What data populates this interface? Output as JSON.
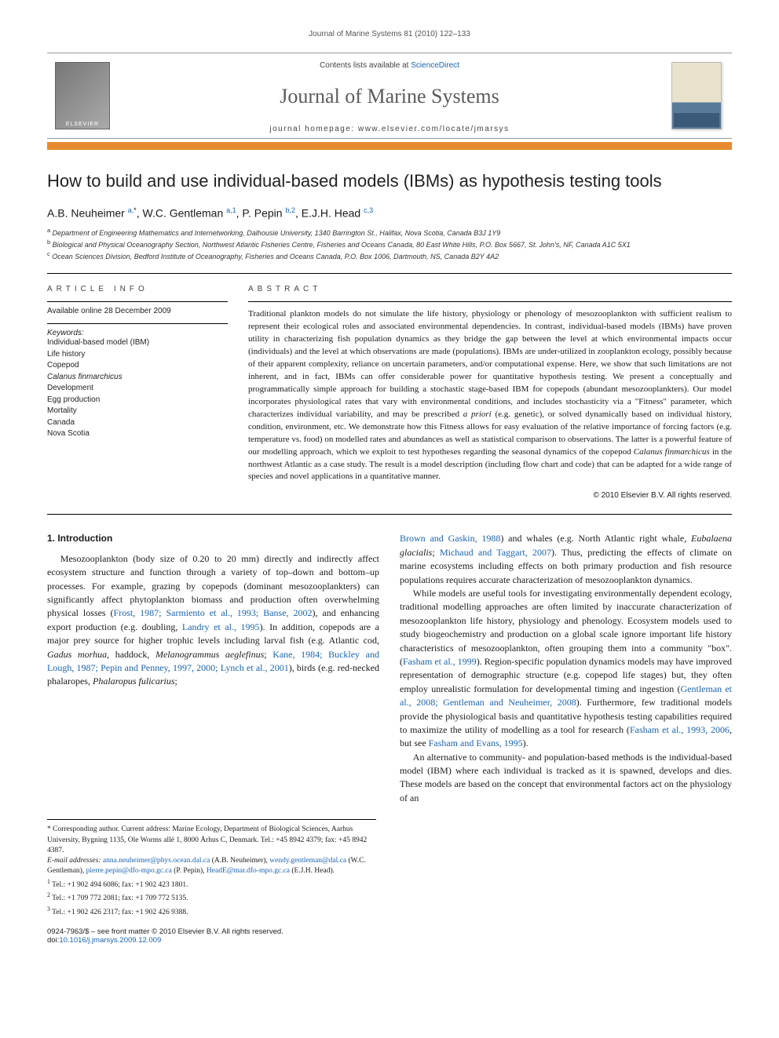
{
  "running_head": "Journal of Marine Systems 81 (2010) 122–133",
  "banner": {
    "publisher": "ELSEVIER",
    "contents_prefix": "Contents lists available at ",
    "contents_link": "ScienceDirect",
    "journal": "Journal of Marine Systems",
    "homepage_prefix": "journal homepage: ",
    "homepage": "www.elsevier.com/locate/jmarsys",
    "cover_text": "JOURNAL OF MARINE SYSTEMS"
  },
  "title": "How to build and use individual-based models (IBMs) as hypothesis testing tools",
  "authors_html": "A.B. Neuheimer <sup class='aff-link'>a,</sup><sup>*</sup>, W.C. Gentleman <sup class='aff-link'>a,1</sup>, P. Pepin <sup class='aff-link'>b,2</sup>, E.J.H. Head <sup class='aff-link'>c,3</sup>",
  "affiliations": [
    "<sup>a</sup> Department of Engineering Mathematics and Internetworking, Dalhousie University, 1340 Barrington St., Halifax, Nova Scotia, Canada B3J 1Y9",
    "<sup>b</sup> Biological and Physical Oceanography Section, Northwest Atlantic Fisheries Centre, Fisheries and Oceans Canada, 80 East White Hills, P.O. Box 5667, St. John's, NF, Canada A1C 5X1",
    "<sup>c</sup> Ocean Sciences Division, Bedford Institute of Oceanography, Fisheries and Oceans Canada, P.O. Box 1006, Dartmouth, NS, Canada B2Y 4A2"
  ],
  "article_info": {
    "head": "ARTICLE INFO",
    "available": "Available online 28 December 2009",
    "kw_head": "Keywords:",
    "keywords": [
      "Individual-based model (IBM)",
      "Life history",
      "Copepod",
      "<span class='ital'>Calanus finmarchicus</span>",
      "Development",
      "Egg production",
      "Mortality",
      "Canada",
      "Nova Scotia"
    ]
  },
  "abstract": {
    "head": "ABSTRACT",
    "text": "Traditional plankton models do not simulate the life history, physiology or phenology of mesozooplankton with sufficient realism to represent their ecological roles and associated environmental dependencies. In contrast, individual-based models (IBMs) have proven utility in characterizing fish population dynamics as they bridge the gap between the level at which environmental impacts occur (individuals) and the level at which observations are made (populations). IBMs are under-utilized in zooplankton ecology, possibly because of their apparent complexity, reliance on uncertain parameters, and/or computational expense. Here, we show that such limitations are not inherent, and in fact, IBMs can offer considerable power for quantitative hypothesis testing. We present a conceptually and programmatically simple approach for building a stochastic stage-based IBM for copepods (abundant mesozooplankters). Our model incorporates physiological rates that vary with environmental conditions, and includes stochasticity via a \"Fitness\" parameter, which characterizes individual variability, and may be prescribed <span class='ital'>a priori</span> (e.g. genetic), or solved dynamically based on individual history, condition, environment, etc. We demonstrate how this Fitness allows for easy evaluation of the relative importance of forcing factors (e.g. temperature vs. food) on modelled rates and abundances as well as statistical comparison to observations. The latter is a powerful feature of our modelling approach, which we exploit to test hypotheses regarding the seasonal dynamics of the copepod <span class='ital'>Calanus finmarchicus</span> in the northwest Atlantic as a case study. The result is a model description (including flow chart and code) that can be adapted for a wide range of species and novel applications in a quantitative manner.",
    "copyright": "© 2010 Elsevier B.V. All rights reserved."
  },
  "section1": {
    "head": "1. Introduction",
    "p1": "Mesozooplankton (body size of 0.20 to 20 mm) directly and indirectly affect ecosystem structure and function through a variety of top–down and bottom–up processes. For example, grazing by copepods (dominant mesozooplankters) can significantly affect phytoplankton biomass and production often overwhelming physical losses (<span class='cite'>Frost, 1987; Sarmiento et al., 1993; Banse, 2002</span>), and enhancing export production (e.g. doubling, <span class='cite'>Landry et al., 1995</span>). In addition, copepods are a major prey source for higher trophic levels including larval fish (e.g. Atlantic cod, <span class='ital'>Gadus morhua</span>, haddock, <span class='ital'>Melanogrammus aeglefinus</span>; <span class='cite'>Kane, 1984; Buckley and Lough, 1987; Pepin and Penney, 1997, 2000; Lynch et al., 2001</span>), birds (e.g. red-necked phalaropes, <span class='ital'>Phalaropus fulicarius</span>;",
    "p2": "<span class='cite'>Brown and Gaskin, 1988</span>) and whales (e.g. North Atlantic right whale, <span class='ital'>Eubalaena glacialis</span>; <span class='cite'>Michaud and Taggart, 2007</span>). Thus, predicting the effects of climate on marine ecosystems including effects on both primary production and fish resource populations requires accurate characterization of mesozooplankton dynamics.",
    "p3": "While models are useful tools for investigating environmentally dependent ecology, traditional modelling approaches are often limited by inaccurate characterization of mesozooplankton life history, physiology and phenology. Ecosystem models used to study biogeochemistry and production on a global scale ignore important life history characteristics of mesozooplankton, often grouping them into a community \"box\". (<span class='cite'>Fasham et al., 1999</span>). Region-specific population dynamics models may have improved representation of demographic structure (e.g. copepod life stages) but, they often employ unrealistic formulation for developmental timing and ingestion (<span class='cite'>Gentleman et al., 2008; Gentleman and Neuheimer, 2008</span>). Furthermore, few traditional models provide the physiological basis and quantitative hypothesis testing capabilities required to maximize the utility of modelling as a tool for research (<span class='cite'>Fasham et al., 1993, 2006</span>, but see <span class='cite'>Fasham and Evans, 1995</span>).",
    "p4": "An alternative to community- and population-based methods is the individual-based model (IBM) where each individual is tracked as it is spawned, develops and dies. These models are based on the concept that environmental factors act on the physiology of an"
  },
  "footnotes": {
    "corr": "* Corresponding author. Current address: Marine Ecology, Department of Biological Sciences, Aarhus University, Bygning 1135, Ole Worms allé 1, 8000 Århus C, Denmark. Tel.: +45 8942 4379; fax: +45 8942 4387.",
    "email_label": "<span class='ital'>E-mail addresses:</span> ",
    "emails": "<a>anna.neuheimer@phys.ocean.dal.ca</a> (A.B. Neuheimer), <a>wendy.gentleman@dal.ca</a> (W.C. Gentleman), <a>pierre.pepin@dfo-mpo.gc.ca</a> (P. Pepin), <a>HeadE@mar.dfo-mpo.gc.ca</a> (E.J.H. Head).",
    "n1": "<sup>1</sup> Tel.: +1 902 494 6086; fax: +1 902 423 1801.",
    "n2": "<sup>2</sup> Tel.: +1 709 772 2081; fax: +1 709 772 5135.",
    "n3": "<sup>3</sup> Tel.: +1 902 426 2317; fax: +1 902 426 9388."
  },
  "bottom": {
    "left1": "0924-7963/$ – see front matter © 2010 Elsevier B.V. All rights reserved.",
    "left2_prefix": "doi:",
    "doi": "10.1016/j.jmarsys.2009.12.009"
  },
  "colors": {
    "accent_orange": "#e78b2f",
    "link_blue": "#1b63b0",
    "text": "#1a1a1a"
  }
}
